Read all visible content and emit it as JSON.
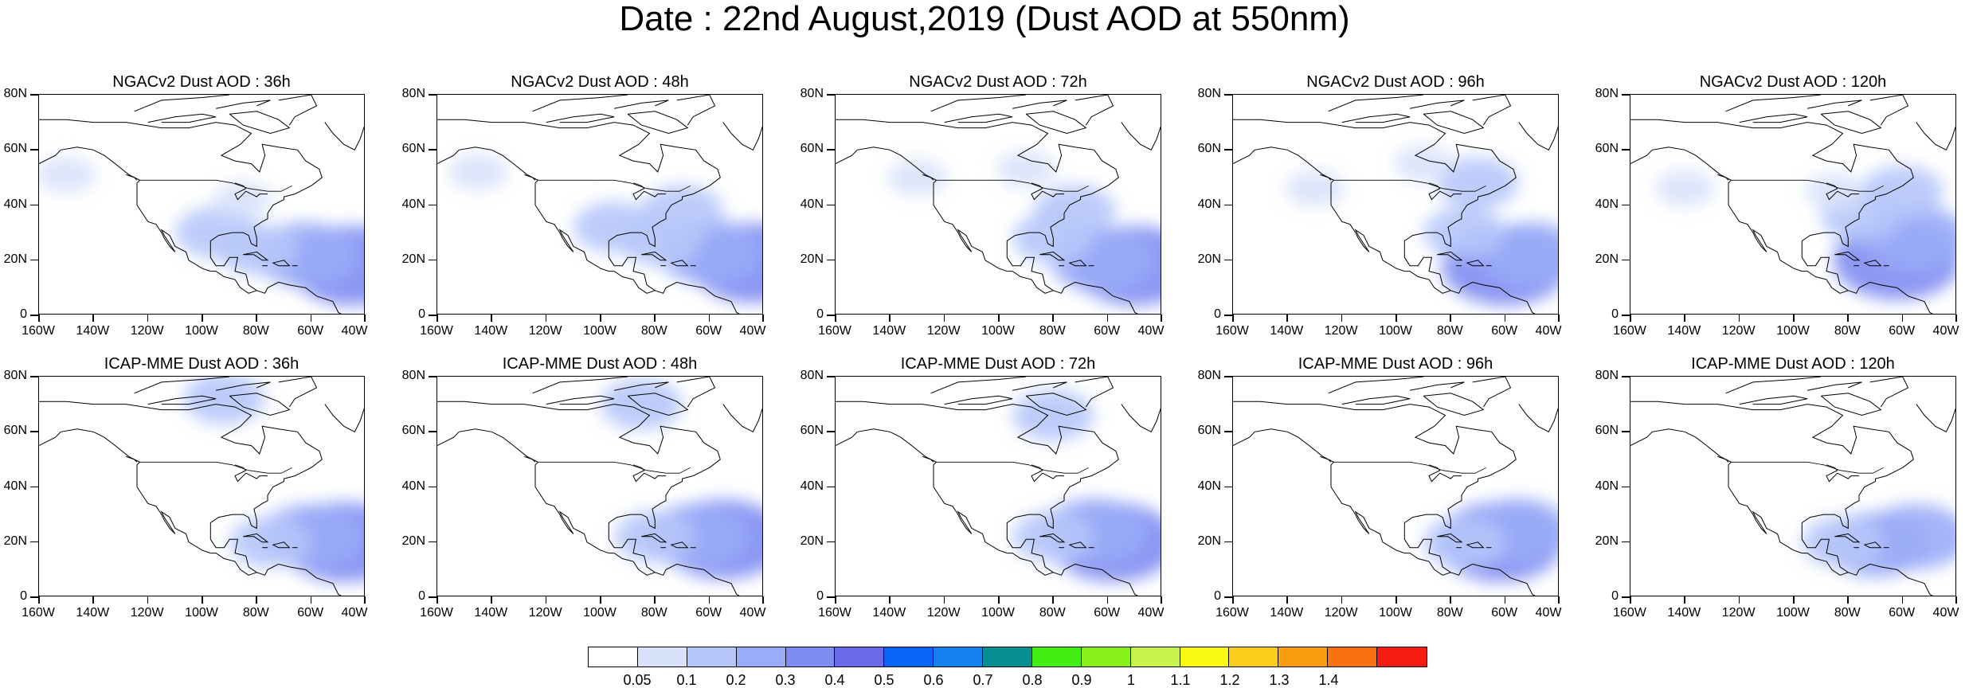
{
  "title": "Date : 22nd August,2019 (Dust AOD at 550nm)",
  "lat_labels": [
    "80N",
    "60N",
    "40N",
    "20N",
    "0"
  ],
  "lon_labels": [
    "160W",
    "140W",
    "120W",
    "100W",
    "80W",
    "60W",
    "40W"
  ],
  "panels": [
    {
      "title": "NGACv2 Dust AOD : 36h",
      "model": "NGACv2",
      "lead": "36h",
      "plumes": [
        {
          "lon": -45,
          "lat": 18,
          "level": 4
        },
        {
          "lon": -62,
          "lat": 22,
          "level": 3
        },
        {
          "lon": -80,
          "lat": 24,
          "level": 2
        },
        {
          "lon": -95,
          "lat": 30,
          "level": 2
        },
        {
          "lon": -150,
          "lat": 51,
          "level": 1
        },
        {
          "lon": -85,
          "lat": 42,
          "level": 1
        }
      ]
    },
    {
      "title": "NGACv2 Dust AOD : 48h",
      "model": "NGACv2",
      "lead": "48h",
      "plumes": [
        {
          "lon": -44,
          "lat": 19,
          "level": 4
        },
        {
          "lon": -60,
          "lat": 23,
          "level": 3
        },
        {
          "lon": -78,
          "lat": 27,
          "level": 2
        },
        {
          "lon": -95,
          "lat": 32,
          "level": 2
        },
        {
          "lon": -145,
          "lat": 52,
          "level": 1
        },
        {
          "lon": -70,
          "lat": 38,
          "level": 2
        }
      ]
    },
    {
      "title": "NGACv2 Dust AOD : 72h",
      "model": "NGACv2",
      "lead": "72h",
      "plumes": [
        {
          "lon": -50,
          "lat": 18,
          "level": 4
        },
        {
          "lon": -62,
          "lat": 20,
          "level": 3
        },
        {
          "lon": -80,
          "lat": 28,
          "level": 2
        },
        {
          "lon": -72,
          "lat": 38,
          "level": 2
        },
        {
          "lon": -130,
          "lat": 50,
          "level": 1
        },
        {
          "lon": -90,
          "lat": 53,
          "level": 1
        }
      ]
    },
    {
      "title": "NGACv2 Dust AOD : 96h",
      "model": "NGACv2",
      "lead": "96h",
      "plumes": [
        {
          "lon": -60,
          "lat": 18,
          "level": 4
        },
        {
          "lon": -50,
          "lat": 22,
          "level": 3
        },
        {
          "lon": -75,
          "lat": 30,
          "level": 2
        },
        {
          "lon": -70,
          "lat": 48,
          "level": 2
        },
        {
          "lon": -130,
          "lat": 46,
          "level": 1
        },
        {
          "lon": -90,
          "lat": 55,
          "level": 1
        }
      ]
    },
    {
      "title": "NGACv2 Dust AOD : 120h",
      "model": "NGACv2",
      "lead": "120h",
      "plumes": [
        {
          "lon": -62,
          "lat": 20,
          "level": 4
        },
        {
          "lon": -55,
          "lat": 28,
          "level": 3
        },
        {
          "lon": -75,
          "lat": 36,
          "level": 2
        },
        {
          "lon": -85,
          "lat": 45,
          "level": 1
        },
        {
          "lon": -140,
          "lat": 46,
          "level": 1
        },
        {
          "lon": -60,
          "lat": 45,
          "level": 2
        }
      ]
    },
    {
      "title": "ICAP-MME Dust AOD : 36h",
      "model": "ICAP-MME",
      "lead": "36h",
      "plumes": [
        {
          "lon": -48,
          "lat": 20,
          "level": 4
        },
        {
          "lon": -60,
          "lat": 22,
          "level": 3
        },
        {
          "lon": -75,
          "lat": 20,
          "level": 2
        },
        {
          "lon": -92,
          "lat": 72,
          "level": 2
        }
      ]
    },
    {
      "title": "ICAP-MME Dust AOD : 48h",
      "model": "ICAP-MME",
      "lead": "48h",
      "plumes": [
        {
          "lon": -55,
          "lat": 21,
          "level": 4
        },
        {
          "lon": -65,
          "lat": 22,
          "level": 3
        },
        {
          "lon": -80,
          "lat": 22,
          "level": 2
        },
        {
          "lon": -85,
          "lat": 70,
          "level": 2
        }
      ]
    },
    {
      "title": "ICAP-MME Dust AOD : 72h",
      "model": "ICAP-MME",
      "lead": "72h",
      "plumes": [
        {
          "lon": -58,
          "lat": 20,
          "level": 4
        },
        {
          "lon": -65,
          "lat": 24,
          "level": 3
        },
        {
          "lon": -80,
          "lat": 22,
          "level": 2
        },
        {
          "lon": -80,
          "lat": 66,
          "level": 2
        }
      ]
    },
    {
      "title": "ICAP-MME Dust AOD : 96h",
      "model": "ICAP-MME",
      "lead": "96h",
      "plumes": [
        {
          "lon": -62,
          "lat": 20,
          "level": 4
        },
        {
          "lon": -55,
          "lat": 24,
          "level": 3
        },
        {
          "lon": -75,
          "lat": 20,
          "level": 2
        }
      ]
    },
    {
      "title": "ICAP-MME Dust AOD : 120h",
      "model": "ICAP-MME",
      "lead": "120h",
      "plumes": [
        {
          "lon": -70,
          "lat": 19,
          "level": 3
        },
        {
          "lon": -55,
          "lat": 22,
          "level": 3
        },
        {
          "lon": -82,
          "lat": 20,
          "level": 2
        }
      ]
    }
  ],
  "colorbar": {
    "colors": [
      "#ffffff",
      "#d9e2fb",
      "#b6c6f9",
      "#9aacf7",
      "#7f8df2",
      "#6b6ae8",
      "#0a64f5",
      "#1580f0",
      "#058f91",
      "#43ee12",
      "#89ef1a",
      "#c6f34c",
      "#f9f911",
      "#fbcc1b",
      "#fa9e0f",
      "#fa7210",
      "#f51c14"
    ],
    "labels": [
      "0.05",
      "0.1",
      "0.2",
      "0.3",
      "0.4",
      "0.5",
      "0.6",
      "0.7",
      "0.8",
      "0.9",
      "1",
      "1.1",
      "1.2",
      "1.3",
      "1.4"
    ]
  }
}
